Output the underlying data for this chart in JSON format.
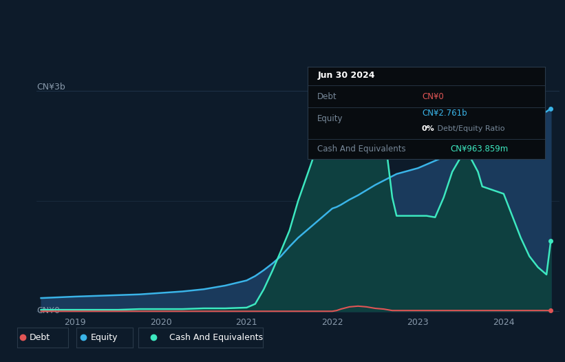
{
  "background_color": "#0d1b2a",
  "plot_bg_color": "#0d1b2a",
  "ylim_max": 3.5,
  "ylabel_top": "CN¥3b",
  "ylabel_bottom": "CN¥0",
  "xticks": [
    2019,
    2020,
    2021,
    2022,
    2023,
    2024
  ],
  "equity_color": "#3ab4e8",
  "cash_color": "#3de8c0",
  "debt_color": "#e05555",
  "equity_fill": "#1a3a5c",
  "cash_fill": "#0e4040",
  "gridline_color": "#1e3045",
  "time_points": [
    2018.6,
    2019.0,
    2019.25,
    2019.5,
    2019.75,
    2020.0,
    2020.25,
    2020.5,
    2020.75,
    2021.0,
    2021.1,
    2021.2,
    2021.3,
    2021.4,
    2021.5,
    2021.6,
    2021.75,
    2022.0,
    2022.05,
    2022.1,
    2022.2,
    2022.3,
    2022.4,
    2022.5,
    2022.6,
    2022.7,
    2022.75,
    2023.0,
    2023.1,
    2023.2,
    2023.3,
    2023.4,
    2023.5,
    2023.6,
    2023.7,
    2023.75,
    2024.0,
    2024.1,
    2024.2,
    2024.3,
    2024.4,
    2024.5,
    2024.55
  ],
  "equity_values": [
    0.18,
    0.2,
    0.21,
    0.22,
    0.23,
    0.25,
    0.27,
    0.3,
    0.35,
    0.42,
    0.48,
    0.56,
    0.65,
    0.75,
    0.88,
    1.0,
    1.15,
    1.4,
    1.42,
    1.45,
    1.52,
    1.58,
    1.65,
    1.72,
    1.78,
    1.84,
    1.87,
    1.95,
    2.0,
    2.05,
    2.1,
    2.15,
    2.2,
    2.25,
    2.3,
    2.35,
    2.45,
    2.52,
    2.57,
    2.62,
    2.67,
    2.72,
    2.76
  ],
  "cash_values": [
    0.02,
    0.02,
    0.02,
    0.02,
    0.03,
    0.03,
    0.03,
    0.04,
    0.04,
    0.05,
    0.1,
    0.3,
    0.55,
    0.82,
    1.1,
    1.5,
    2.0,
    2.85,
    2.95,
    3.05,
    3.1,
    3.1,
    3.08,
    3.05,
    2.5,
    1.55,
    1.3,
    1.3,
    1.3,
    1.28,
    1.55,
    1.9,
    2.1,
    2.12,
    1.9,
    1.7,
    1.6,
    1.3,
    1.0,
    0.75,
    0.6,
    0.5,
    0.96
  ],
  "debt_values": [
    0.0,
    0.0,
    0.0,
    0.0,
    0.0,
    0.0,
    0.0,
    0.0,
    0.0,
    0.0,
    0.0,
    0.0,
    0.0,
    0.0,
    0.0,
    0.0,
    0.0,
    0.0,
    0.01,
    0.03,
    0.06,
    0.07,
    0.06,
    0.04,
    0.03,
    0.01,
    0.01,
    0.01,
    0.01,
    0.01,
    0.01,
    0.01,
    0.01,
    0.01,
    0.01,
    0.01,
    0.01,
    0.01,
    0.01,
    0.01,
    0.01,
    0.01,
    0.01
  ],
  "tooltip": {
    "title": "Jun 30 2024",
    "debt_label": "Debt",
    "debt_value": "CN¥0",
    "equity_label": "Equity",
    "equity_value": "CN¥2.761b",
    "ratio_value": "0%",
    "ratio_label": " Debt/Equity Ratio",
    "cash_label": "Cash And Equivalents",
    "cash_value": "CN¥963.859m"
  },
  "legend_items": [
    "Debt",
    "Equity",
    "Cash And Equivalents"
  ]
}
